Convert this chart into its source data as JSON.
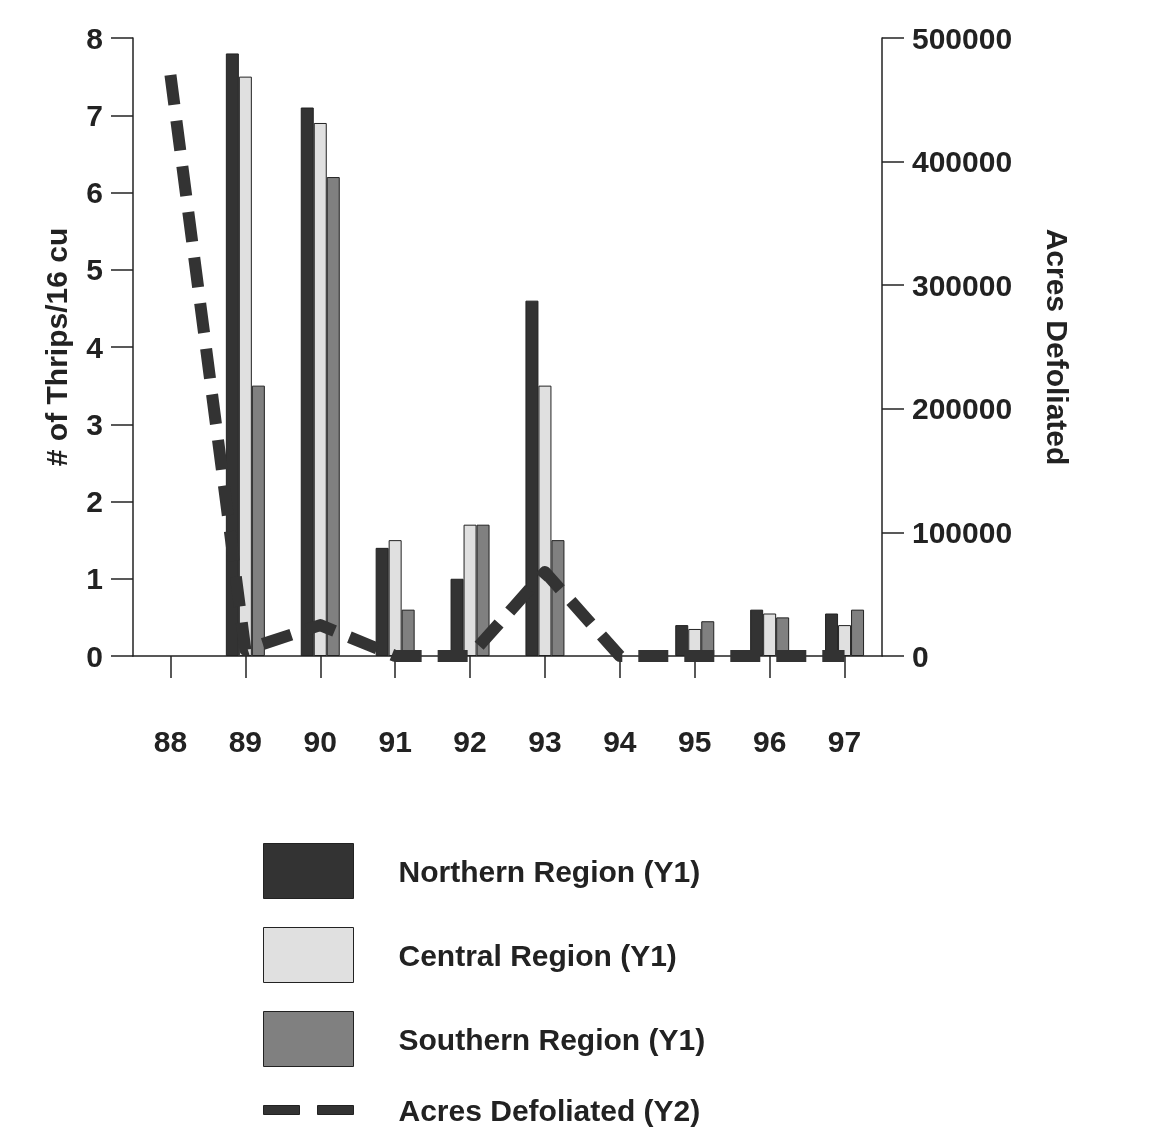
{
  "chart_data": {
    "type": "bar",
    "ylabel": "# of Thrips/16 cu",
    "y2label": "Acres Defoliated",
    "categories": [
      "88",
      "89",
      "90",
      "91",
      "92",
      "93",
      "94",
      "95",
      "96",
      "97"
    ],
    "series": [
      {
        "name": "Northern Region (Y1)",
        "color": "#333333",
        "values": [
          null,
          7.8,
          7.1,
          1.4,
          1.0,
          4.6,
          null,
          0.4,
          0.6,
          0.55
        ]
      },
      {
        "name": "Central Region (Y1)",
        "color": "#e0e0e0",
        "values": [
          null,
          7.5,
          6.9,
          1.5,
          1.7,
          3.5,
          null,
          0.35,
          0.55,
          0.4
        ]
      },
      {
        "name": "Southern Region (Y1)",
        "color": "#808080",
        "values": [
          null,
          3.5,
          6.2,
          0.6,
          1.7,
          1.5,
          null,
          0.45,
          0.5,
          0.6
        ]
      },
      {
        "name": "Acres Defoliated (Y2)",
        "type": "line",
        "axis": "y2",
        "color": "#333333",
        "line_style": "dashed",
        "marker": "none",
        "values": [
          470000,
          5000,
          25000,
          0,
          0,
          68000,
          0,
          0,
          0,
          0
        ]
      }
    ],
    "ylim": [
      0,
      8
    ],
    "yticks": [
      0,
      1,
      2,
      3,
      4,
      5,
      6,
      7,
      8
    ],
    "y2lim": [
      0,
      500000
    ],
    "y2ticks": [
      0,
      100000,
      200000,
      300000,
      400000,
      500000
    ],
    "grid": false,
    "legend": "bottom"
  }
}
